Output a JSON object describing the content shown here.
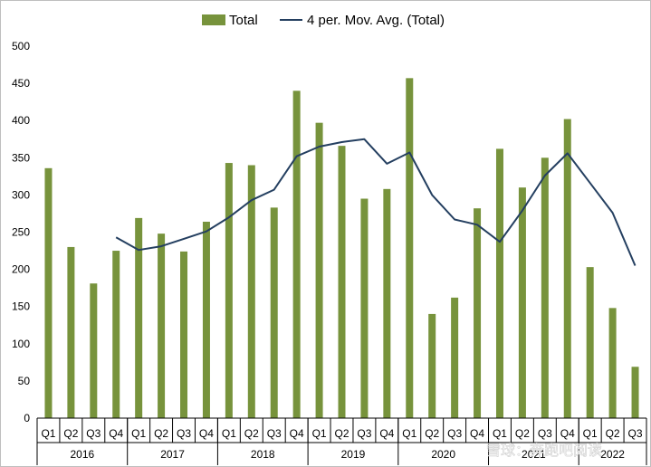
{
  "chart_data": {
    "type": "bar",
    "title": "",
    "xlabel": "",
    "ylabel": "",
    "ylim": [
      0,
      500
    ],
    "y_ticks": [
      0,
      50,
      100,
      150,
      200,
      250,
      300,
      350,
      400,
      450,
      500
    ],
    "grid": false,
    "legend_position": "top",
    "categories": [
      "Q1",
      "Q2",
      "Q3",
      "Q4",
      "Q1",
      "Q2",
      "Q3",
      "Q4",
      "Q1",
      "Q2",
      "Q3",
      "Q4",
      "Q1",
      "Q2",
      "Q3",
      "Q4",
      "Q1",
      "Q2",
      "Q3",
      "Q4",
      "Q1",
      "Q2",
      "Q3",
      "Q4",
      "Q1",
      "Q2",
      "Q3"
    ],
    "years": [
      {
        "label": "2016",
        "quarters": 4
      },
      {
        "label": "2017",
        "quarters": 4
      },
      {
        "label": "2018",
        "quarters": 4
      },
      {
        "label": "2019",
        "quarters": 4
      },
      {
        "label": "2020",
        "quarters": 4
      },
      {
        "label": "2021",
        "quarters": 4
      },
      {
        "label": "2022",
        "quarters": 3
      }
    ],
    "series": [
      {
        "name": "Total",
        "kind": "bar",
        "color": "#77933c",
        "values": [
          336,
          230,
          181,
          225,
          269,
          248,
          224,
          264,
          343,
          340,
          283,
          440,
          397,
          366,
          295,
          308,
          457,
          140,
          162,
          282,
          362,
          310,
          350,
          402,
          203,
          148,
          69
        ]
      },
      {
        "name": "4 per. Mov. Avg. (Total)",
        "kind": "line",
        "color": "#243f60",
        "values": [
          null,
          null,
          null,
          243,
          226,
          231,
          241,
          251,
          270,
          293,
          307,
          352,
          365,
          371,
          375,
          342,
          357,
          300,
          267,
          260,
          237,
          279,
          326,
          356,
          316,
          276,
          205
        ]
      }
    ]
  },
  "watermark": {
    "text": "雪球：奔跑吧阅读"
  }
}
